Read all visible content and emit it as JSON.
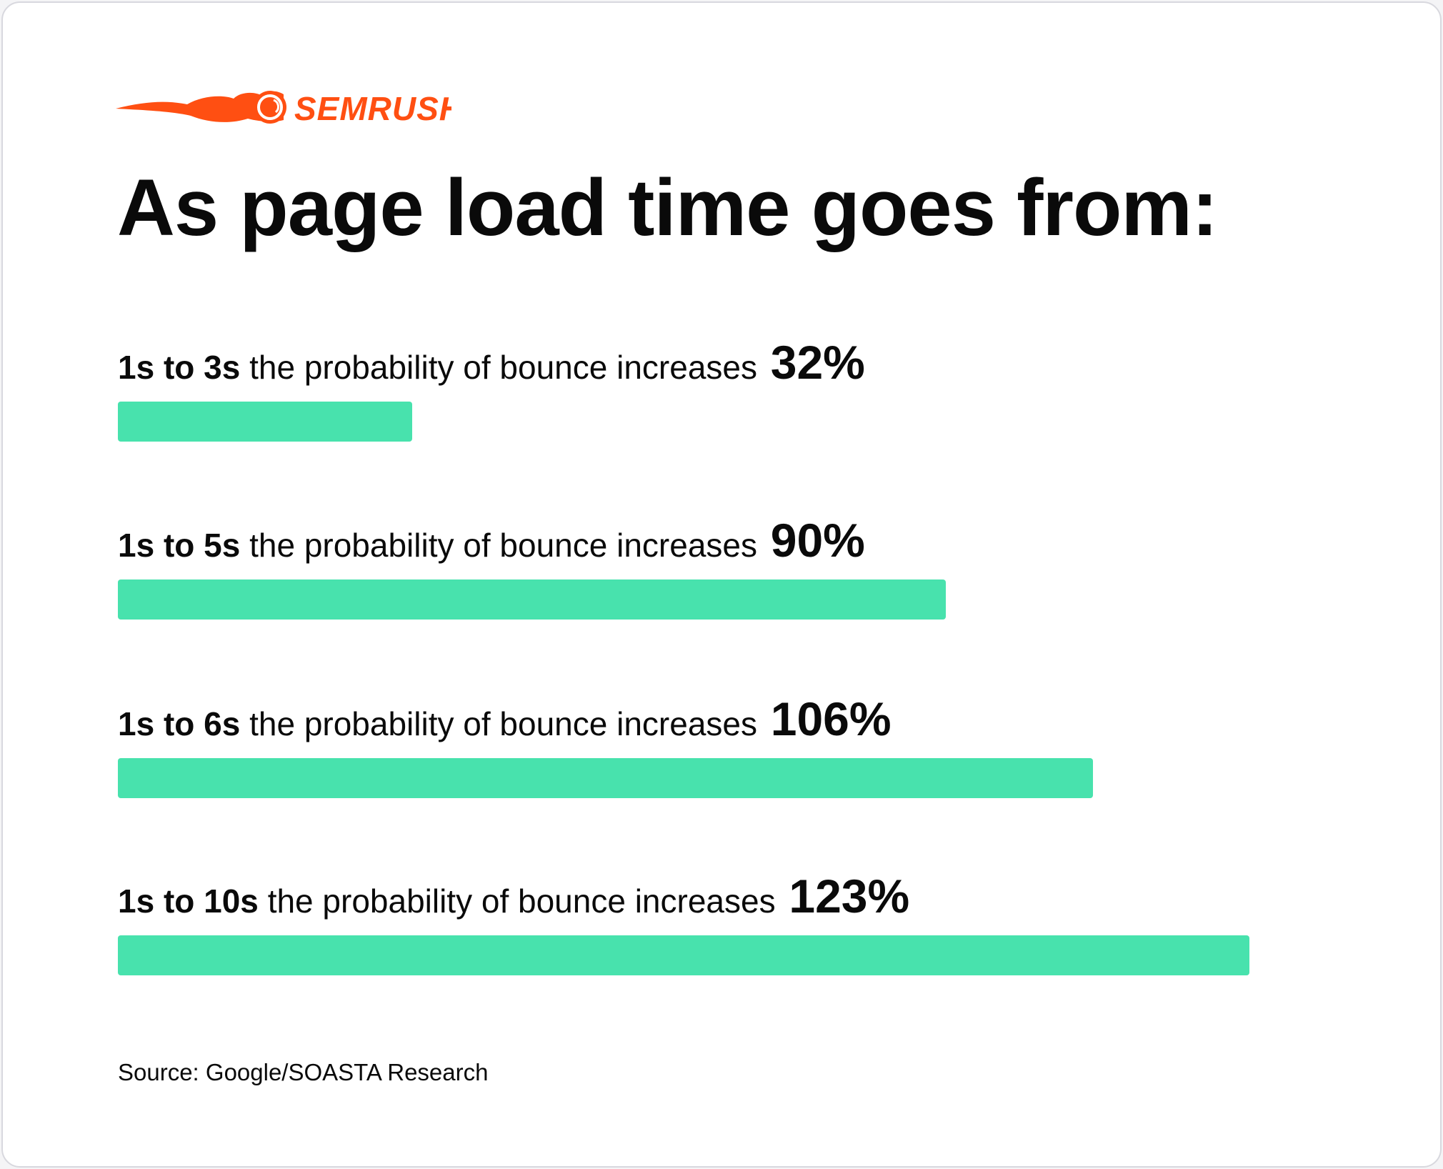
{
  "brand": {
    "name": "SEMRUSH",
    "color": "#ff4f12"
  },
  "title": "As page load time goes from:",
  "chart_data": {
    "type": "bar",
    "orientation": "horizontal",
    "title": "As page load time goes from:",
    "categories": [
      "1s to 3s",
      "1s to 5s",
      "1s to 6s",
      "1s to 10s"
    ],
    "label_text": "the probability of bounce increases",
    "values": [
      32,
      90,
      106,
      123
    ],
    "value_labels": [
      "32%",
      "90%",
      "106%",
      "123%"
    ],
    "bar_color": "#48e2ad",
    "grid": false,
    "xlim": [
      0,
      123
    ]
  },
  "source": "Source: Google/SOASTA Research"
}
